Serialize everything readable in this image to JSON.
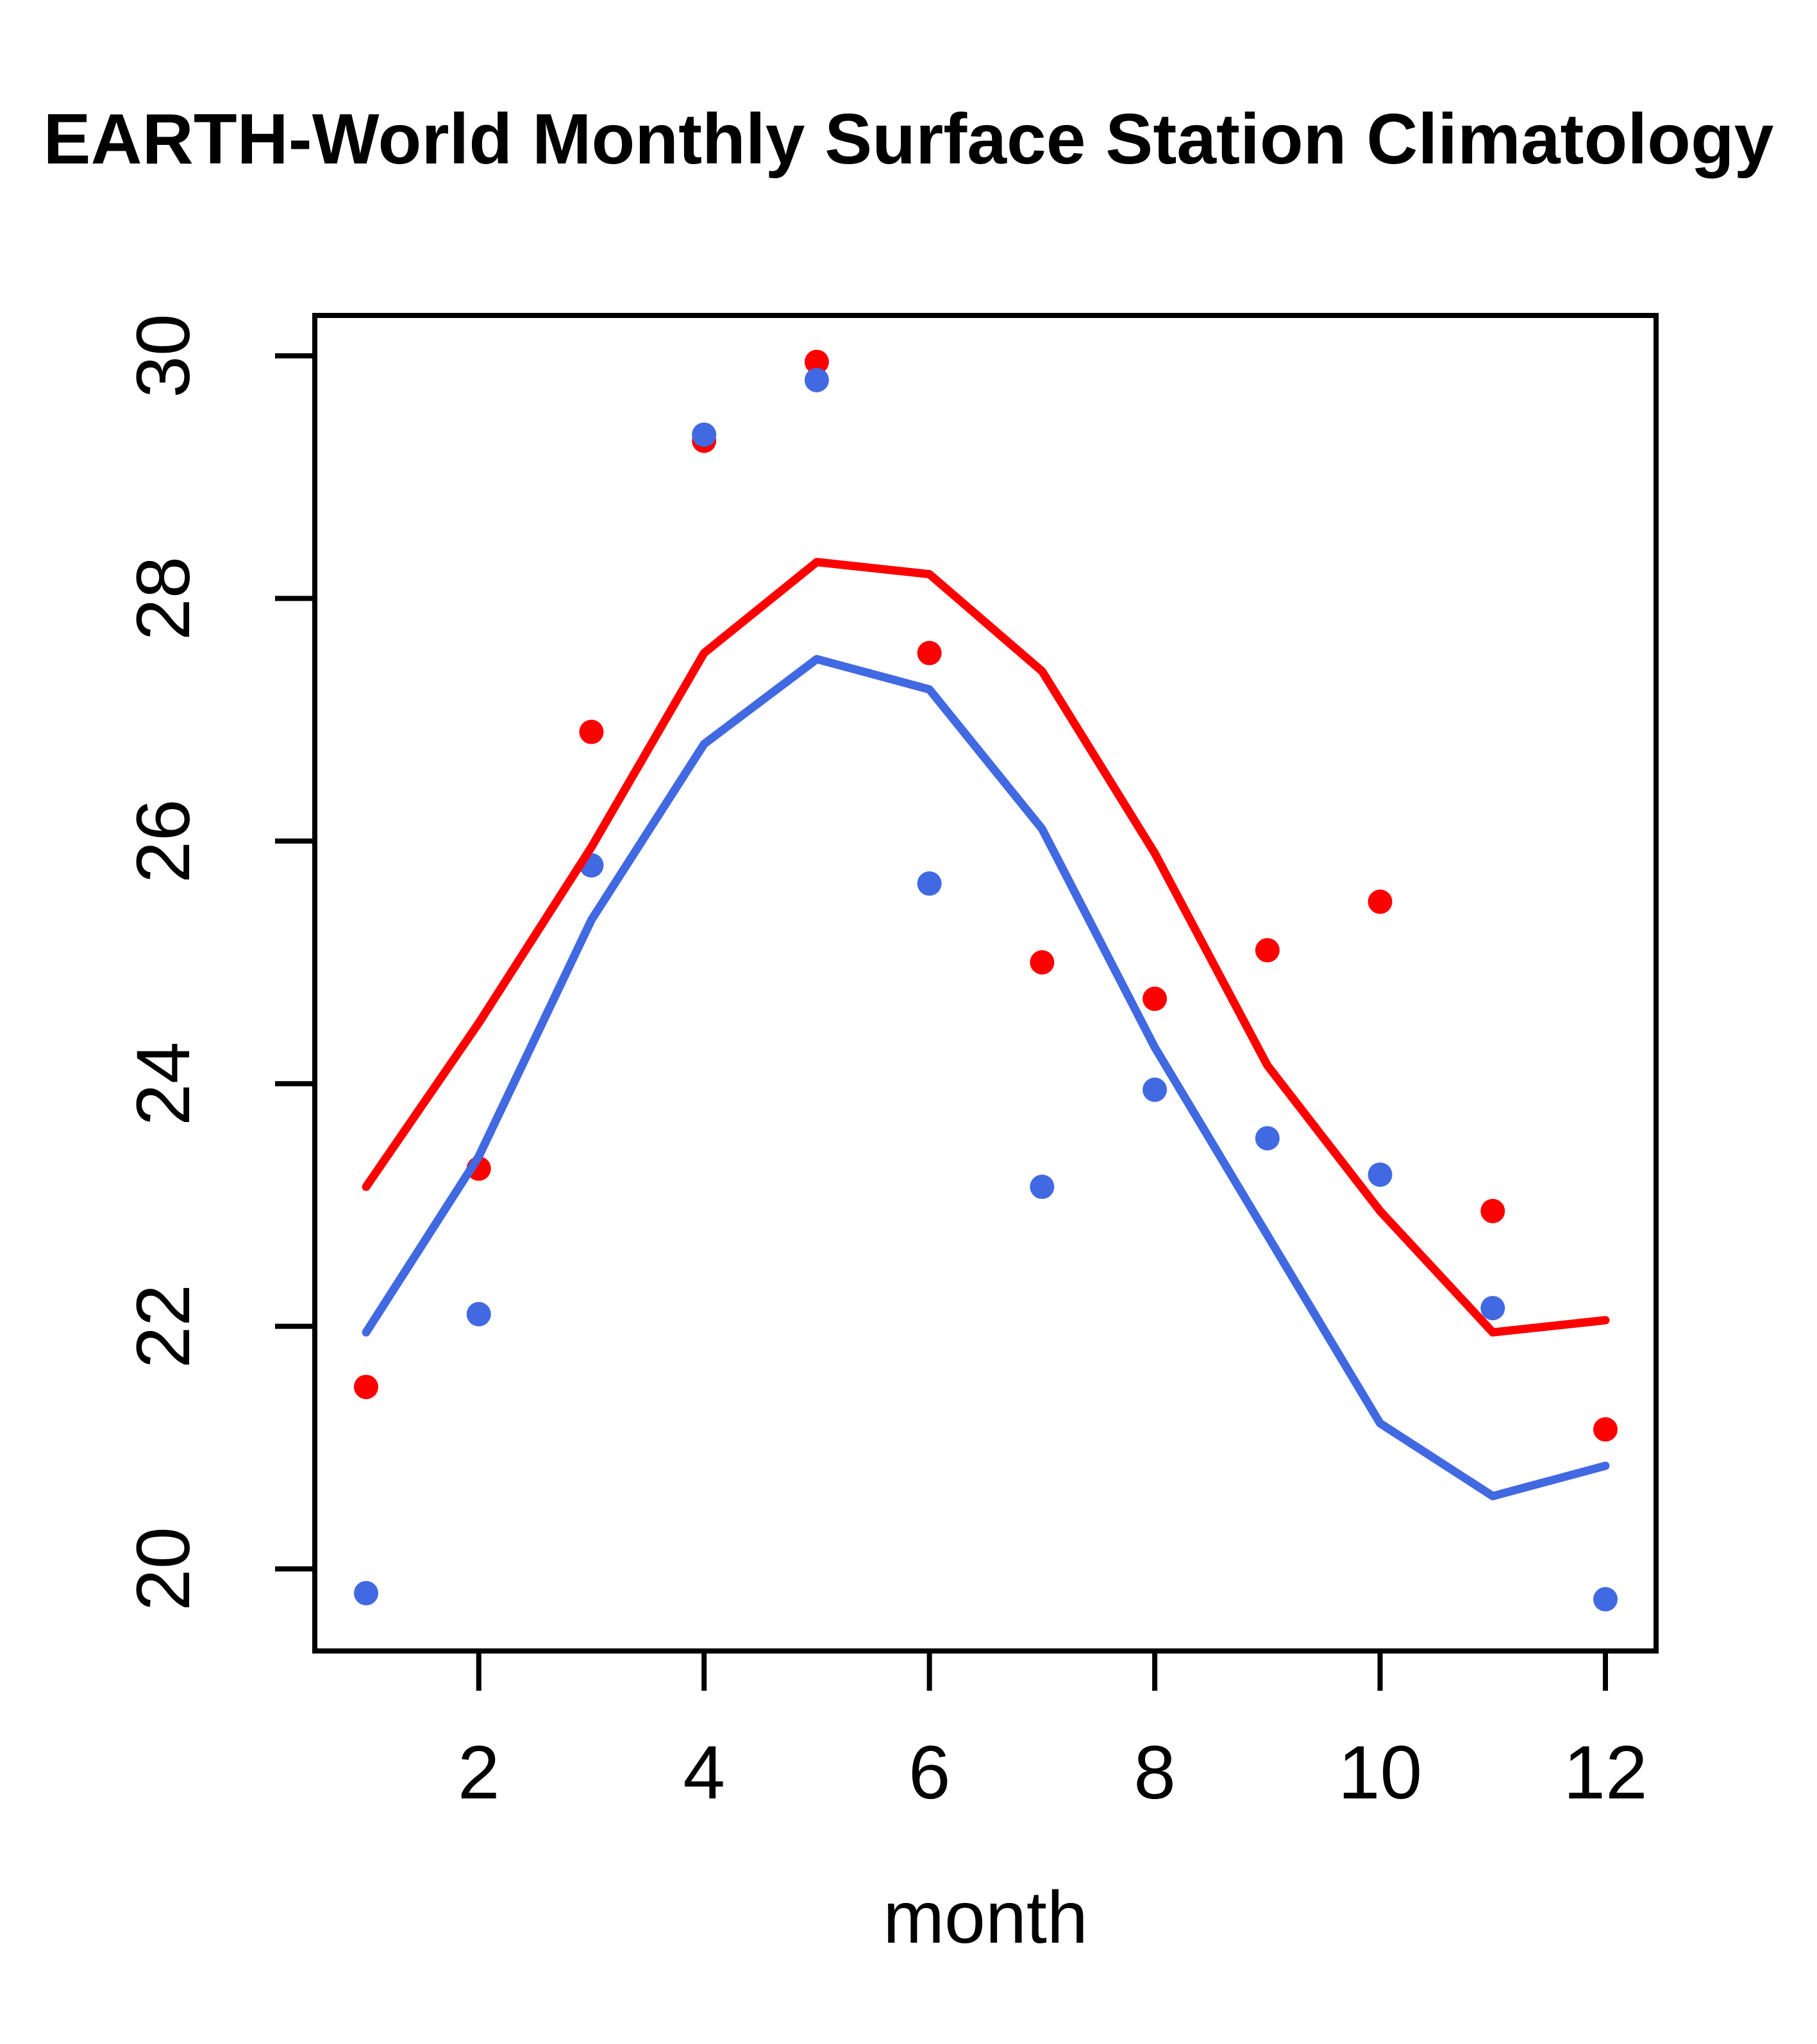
{
  "chart_data": {
    "type": "scatter",
    "title": "EARTH-World Monthly Surface Station Climatology",
    "xlabel": "month",
    "ylabel": "",
    "x": [
      1,
      2,
      3,
      4,
      5,
      6,
      7,
      8,
      9,
      10,
      11,
      12
    ],
    "xlim": [
      1,
      12
    ],
    "ylim": [
      20,
      30
    ],
    "x_ticks": [
      "2",
      "4",
      "6",
      "8",
      "10",
      "12"
    ],
    "x_tick_values": [
      2,
      4,
      6,
      8,
      10,
      12
    ],
    "y_ticks": [
      "20",
      "22",
      "24",
      "26",
      "28",
      "30"
    ],
    "y_tick_values": [
      20,
      22,
      24,
      26,
      28,
      30
    ],
    "grid": "off",
    "legend": "none",
    "colors": {
      "red_series": "#FF0000",
      "blue_series": "#4169E1",
      "axis": "#000000"
    },
    "series": [
      {
        "name": "red-station-points",
        "kind": "points",
        "color": "#FF0000",
        "values": [
          21.5,
          23.3,
          26.9,
          29.3,
          29.95,
          27.55,
          25.0,
          24.7,
          25.1,
          25.5,
          22.95,
          21.15
        ]
      },
      {
        "name": "blue-station-points",
        "kind": "points",
        "color": "#4169E1",
        "values": [
          19.8,
          22.1,
          25.8,
          29.35,
          29.8,
          25.65,
          23.15,
          23.95,
          23.55,
          23.25,
          22.15,
          19.75
        ]
      },
      {
        "name": "red-climatology-line",
        "kind": "line",
        "color": "#FF0000",
        "values": [
          23.15,
          24.5,
          25.95,
          27.55,
          28.3,
          28.2,
          27.4,
          25.9,
          24.15,
          22.95,
          21.95,
          22.05
        ]
      },
      {
        "name": "blue-climatology-line",
        "kind": "line",
        "color": "#4169E1",
        "values": [
          21.95,
          23.4,
          25.35,
          26.8,
          27.5,
          27.25,
          26.1,
          24.3,
          22.75,
          21.2,
          20.6,
          20.85
        ]
      }
    ]
  }
}
